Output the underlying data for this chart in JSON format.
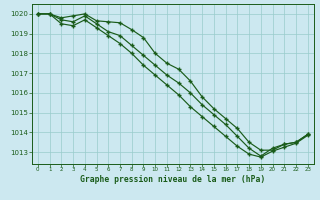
{
  "x": [
    0,
    1,
    2,
    3,
    4,
    5,
    6,
    7,
    8,
    9,
    10,
    11,
    12,
    13,
    14,
    15,
    16,
    17,
    18,
    19,
    20,
    21,
    22,
    23
  ],
  "line1": [
    1020.0,
    1020.0,
    1019.8,
    1019.9,
    1020.0,
    1019.65,
    1019.6,
    1019.55,
    1019.2,
    1018.8,
    1018.0,
    1017.5,
    1017.2,
    1016.6,
    1015.8,
    1015.2,
    1014.7,
    1014.2,
    1013.5,
    1013.1,
    1013.1,
    1013.4,
    1013.5,
    1013.9
  ],
  "line2": [
    1020.0,
    1020.0,
    1019.7,
    1019.6,
    1019.9,
    1019.5,
    1019.1,
    1018.9,
    1018.4,
    1017.9,
    1017.4,
    1016.9,
    1016.5,
    1016.0,
    1015.4,
    1014.9,
    1014.4,
    1013.8,
    1013.2,
    1012.8,
    1013.2,
    1013.4,
    1013.5,
    1013.9
  ],
  "line3": [
    1020.0,
    1020.0,
    1019.5,
    1019.4,
    1019.7,
    1019.3,
    1018.9,
    1018.5,
    1018.0,
    1017.4,
    1016.9,
    1016.4,
    1015.9,
    1015.3,
    1014.8,
    1014.3,
    1013.8,
    1013.3,
    1012.9,
    1012.75,
    1013.05,
    1013.25,
    1013.45,
    1013.85
  ],
  "bg_color": "#cce8f0",
  "grid_color": "#99cccc",
  "line_color": "#1a5c1a",
  "ylabel_ticks": [
    1013,
    1014,
    1015,
    1016,
    1017,
    1018,
    1019,
    1020
  ],
  "xlabel_label": "Graphe pression niveau de la mer (hPa)",
  "ylim": [
    1012.4,
    1020.5
  ],
  "xlim": [
    -0.5,
    23.5
  ]
}
